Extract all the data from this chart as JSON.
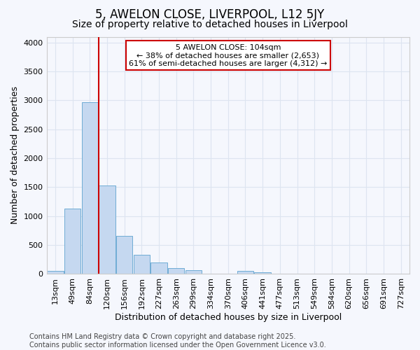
{
  "title": "5, AWELON CLOSE, LIVERPOOL, L12 5JY",
  "subtitle": "Size of property relative to detached houses in Liverpool",
  "xlabel": "Distribution of detached houses by size in Liverpool",
  "ylabel": "Number of detached properties",
  "categories": [
    "13sqm",
    "49sqm",
    "84sqm",
    "120sqm",
    "156sqm",
    "192sqm",
    "227sqm",
    "263sqm",
    "299sqm",
    "334sqm",
    "370sqm",
    "406sqm",
    "441sqm",
    "477sqm",
    "513sqm",
    "549sqm",
    "584sqm",
    "620sqm",
    "656sqm",
    "691sqm",
    "727sqm"
  ],
  "values": [
    50,
    1130,
    2970,
    1530,
    660,
    330,
    200,
    100,
    70,
    5,
    5,
    50,
    30,
    5,
    2,
    2,
    1,
    0,
    0,
    0,
    0
  ],
  "bar_color": "#c5d8f0",
  "bar_edge_color": "#6facd4",
  "vline_x": 2.5,
  "vline_color": "#cc0000",
  "annotation_text": "5 AWELON CLOSE: 104sqm\n← 38% of detached houses are smaller (2,653)\n61% of semi-detached houses are larger (4,312) →",
  "annotation_box_facecolor": "white",
  "annotation_box_edgecolor": "#cc0000",
  "ylim": [
    0,
    4100
  ],
  "yticks": [
    0,
    500,
    1000,
    1500,
    2000,
    2500,
    3000,
    3500,
    4000
  ],
  "bg_color": "#f5f7fd",
  "plot_bg_color": "#f5f7fd",
  "grid_color": "#dde4f0",
  "title_fontsize": 12,
  "subtitle_fontsize": 10,
  "axis_label_fontsize": 9,
  "tick_fontsize": 8,
  "annotation_fontsize": 8,
  "footer_fontsize": 7,
  "footer": "Contains HM Land Registry data © Crown copyright and database right 2025.\nContains public sector information licensed under the Open Government Licence v3.0."
}
